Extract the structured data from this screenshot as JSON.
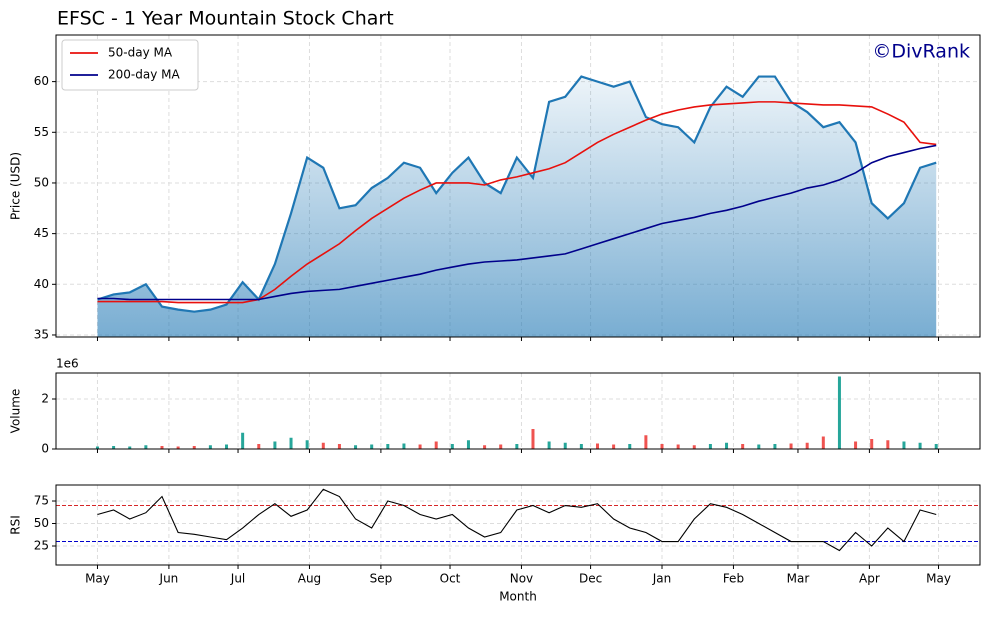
{
  "chart_data": [
    {
      "type": "line",
      "title": "EFSC - 1 Year Mountain Stock Chart",
      "ylabel": "Price (USD)",
      "watermark": "©DivRank",
      "legend": "upper left",
      "grid": true,
      "area": true,
      "color": "#1f77b4",
      "xlim": [
        -18,
        383
      ],
      "ylim": [
        34.8,
        64.6
      ],
      "yticks": [
        35,
        40,
        45,
        50,
        55,
        60
      ],
      "x": [
        0,
        7,
        14,
        21,
        28,
        35,
        42,
        49,
        56,
        63,
        70,
        77,
        84,
        91,
        98,
        105,
        112,
        119,
        126,
        133,
        140,
        147,
        154,
        161,
        168,
        175,
        182,
        189,
        196,
        203,
        210,
        217,
        224,
        231,
        238,
        245,
        252,
        259,
        266,
        273,
        280,
        287,
        294,
        301,
        308,
        315,
        322,
        329,
        336,
        343,
        350,
        357,
        364
      ],
      "values": [
        38.5,
        39.0,
        39.2,
        40.0,
        37.8,
        37.5,
        37.3,
        37.5,
        38.0,
        40.2,
        38.5,
        42.0,
        47.0,
        52.5,
        51.5,
        47.5,
        47.8,
        49.5,
        50.5,
        52.0,
        51.5,
        49.0,
        51.0,
        52.5,
        50.0,
        49.0,
        52.5,
        50.5,
        58.0,
        58.5,
        60.5,
        60.0,
        59.5,
        60.0,
        56.5,
        55.8,
        55.5,
        54.0,
        57.5,
        59.5,
        58.5,
        60.5,
        60.5,
        58.0,
        57.0,
        55.5,
        56.0,
        54.0,
        48.0,
        46.5,
        48.0,
        51.5,
        52.0
      ],
      "series": [
        {
          "name": "50-day MA",
          "color": "#e8100c",
          "values": [
            38.3,
            38.3,
            38.3,
            38.3,
            38.3,
            38.2,
            38.2,
            38.2,
            38.2,
            38.2,
            38.5,
            39.5,
            40.8,
            42.0,
            43.0,
            44.0,
            45.3,
            46.5,
            47.5,
            48.5,
            49.3,
            50.0,
            50.0,
            50.0,
            49.8,
            50.3,
            50.6,
            51.0,
            51.4,
            52.0,
            53.0,
            54.0,
            54.8,
            55.5,
            56.2,
            56.8,
            57.2,
            57.5,
            57.7,
            57.8,
            57.9,
            58.0,
            58.0,
            57.9,
            57.8,
            57.7,
            57.7,
            57.6,
            57.5,
            56.8,
            56.0,
            54.0,
            53.8
          ]
        },
        {
          "name": "200-day MA",
          "color": "#00008b",
          "values": [
            38.6,
            38.6,
            38.5,
            38.5,
            38.5,
            38.5,
            38.5,
            38.5,
            38.5,
            38.5,
            38.5,
            38.8,
            39.1,
            39.3,
            39.4,
            39.5,
            39.8,
            40.1,
            40.4,
            40.7,
            41.0,
            41.4,
            41.7,
            42.0,
            42.2,
            42.3,
            42.4,
            42.6,
            42.8,
            43.0,
            43.5,
            44.0,
            44.5,
            45.0,
            45.5,
            46.0,
            46.3,
            46.6,
            47.0,
            47.3,
            47.7,
            48.2,
            48.6,
            49.0,
            49.5,
            49.8,
            50.3,
            51.0,
            52.0,
            52.6,
            53.0,
            53.4,
            53.7
          ]
        }
      ]
    },
    {
      "type": "bar",
      "ylabel": "Volume",
      "offset_label": "1e6",
      "grid": true,
      "up_color": "#26a69a",
      "down_color": "#ef5350",
      "xlim": [
        -18,
        383
      ],
      "ylim": [
        0,
        3.04
      ],
      "yticks": [
        0,
        2
      ],
      "x": [
        0,
        7,
        14,
        21,
        28,
        35,
        42,
        49,
        56,
        63,
        70,
        77,
        84,
        91,
        98,
        105,
        112,
        119,
        126,
        133,
        140,
        147,
        154,
        161,
        168,
        175,
        182,
        189,
        196,
        203,
        210,
        217,
        224,
        231,
        238,
        245,
        252,
        259,
        266,
        273,
        280,
        287,
        294,
        301,
        308,
        315,
        322,
        329,
        336,
        343,
        350,
        357,
        364
      ],
      "values": [
        0.1,
        0.12,
        0.1,
        0.15,
        0.12,
        0.1,
        0.12,
        0.15,
        0.18,
        0.65,
        0.2,
        0.3,
        0.45,
        0.35,
        0.25,
        0.2,
        0.15,
        0.18,
        0.2,
        0.22,
        0.18,
        0.3,
        0.2,
        0.35,
        0.15,
        0.18,
        0.2,
        0.8,
        0.3,
        0.25,
        0.2,
        0.22,
        0.18,
        0.2,
        0.55,
        0.2,
        0.18,
        0.15,
        0.2,
        0.25,
        0.2,
        0.18,
        0.2,
        0.22,
        0.25,
        0.5,
        2.9,
        0.3,
        0.4,
        0.35,
        0.3,
        0.25,
        0.2
      ]
    },
    {
      "type": "line",
      "ylabel": "RSI",
      "xlabel": "Month",
      "grid": true,
      "color": "#000000",
      "xlim": [
        -18,
        383
      ],
      "ylim": [
        3.9,
        92.8
      ],
      "yticks": [
        25,
        50,
        75
      ],
      "hlines": [
        {
          "value": 70,
          "color": "#d62728"
        },
        {
          "value": 30,
          "color": "#0000cc"
        }
      ],
      "xticks": [
        {
          "value": 0,
          "label": "May"
        },
        {
          "value": 31,
          "label": "Jun"
        },
        {
          "value": 61,
          "label": "Jul"
        },
        {
          "value": 92,
          "label": "Aug"
        },
        {
          "value": 123,
          "label": "Sep"
        },
        {
          "value": 153,
          "label": "Oct"
        },
        {
          "value": 184,
          "label": "Nov"
        },
        {
          "value": 214,
          "label": "Dec"
        },
        {
          "value": 245,
          "label": "Jan"
        },
        {
          "value": 276,
          "label": "Feb"
        },
        {
          "value": 304,
          "label": "Mar"
        },
        {
          "value": 335,
          "label": "Apr"
        },
        {
          "value": 365,
          "label": "May"
        }
      ],
      "x": [
        0,
        7,
        14,
        21,
        28,
        35,
        42,
        49,
        56,
        63,
        70,
        77,
        84,
        91,
        98,
        105,
        112,
        119,
        126,
        133,
        140,
        147,
        154,
        161,
        168,
        175,
        182,
        189,
        196,
        203,
        210,
        217,
        224,
        231,
        238,
        245,
        252,
        259,
        266,
        273,
        280,
        287,
        294,
        301,
        308,
        315,
        322,
        329,
        336,
        343,
        350,
        357,
        364
      ],
      "values": [
        60,
        65,
        55,
        62,
        80,
        40,
        38,
        35,
        32,
        45,
        60,
        72,
        58,
        65,
        88,
        80,
        55,
        45,
        75,
        70,
        60,
        55,
        60,
        45,
        35,
        40,
        65,
        70,
        62,
        70,
        68,
        72,
        55,
        45,
        40,
        30,
        30,
        55,
        72,
        68,
        60,
        50,
        40,
        30,
        30,
        30,
        20,
        40,
        25,
        45,
        30,
        65,
        60
      ]
    }
  ]
}
